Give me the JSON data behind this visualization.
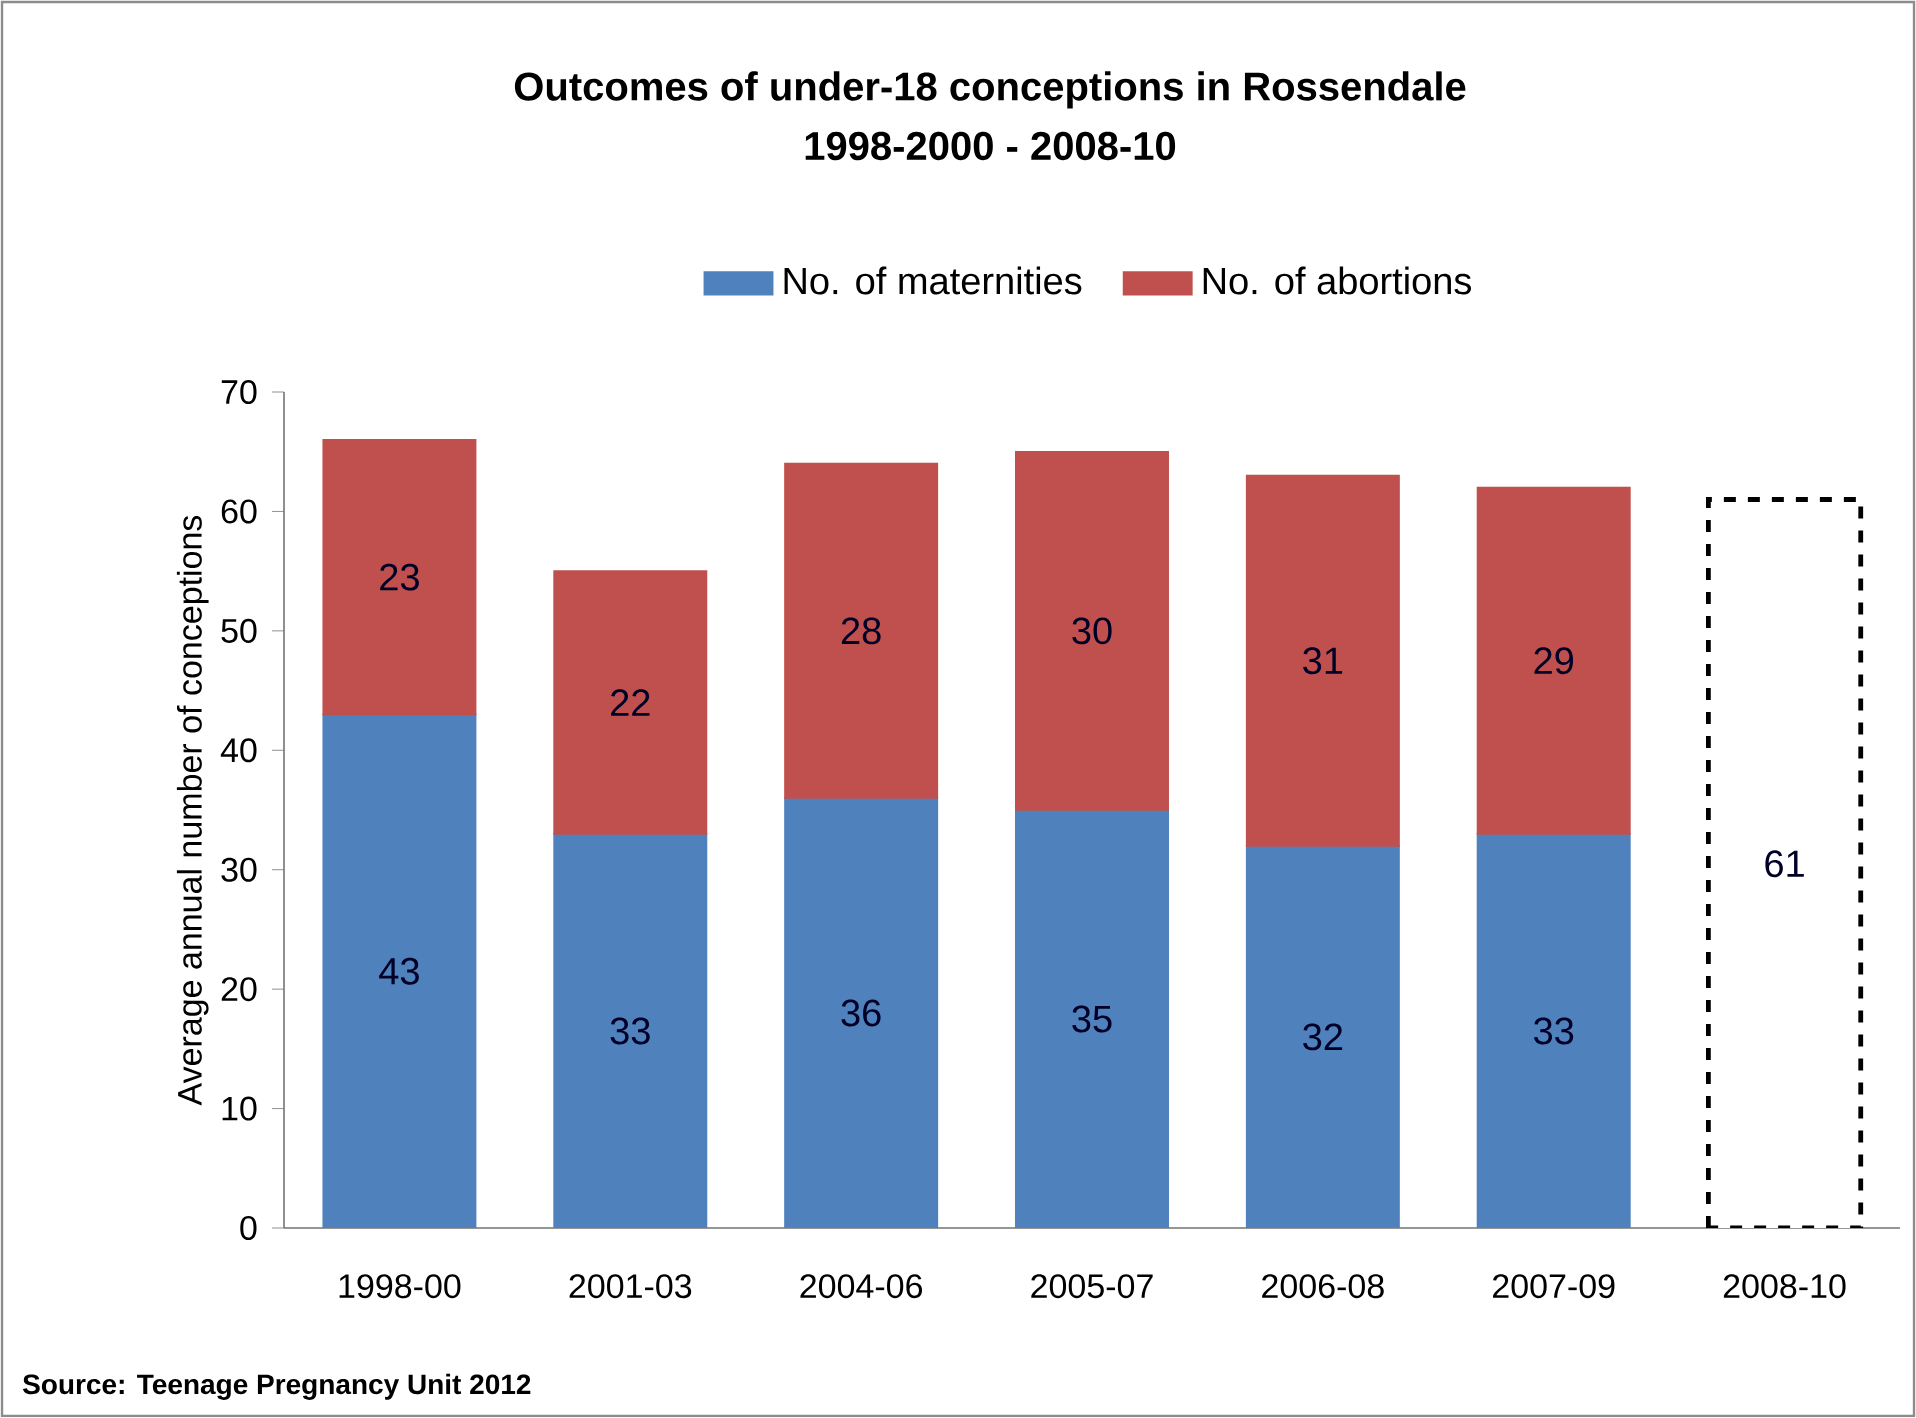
{
  "chart_data": {
    "type": "bar",
    "stacked": true,
    "title": "Outcomes of under-18 conceptions in Rossendale",
    "subtitle": "1998-2000 - 2008-10",
    "ylabel": "Average annual number of conceptions",
    "categories": [
      "1998-00",
      "2001-03",
      "2004-06",
      "2005-07",
      "2006-08",
      "2007-09",
      "2008-10"
    ],
    "series": [
      {
        "name": "No. of maternities",
        "color": "#4f81bd",
        "values": [
          43,
          33,
          36,
          35,
          32,
          33,
          null
        ]
      },
      {
        "name": "No. of abortions",
        "color": "#c0504d",
        "values": [
          23,
          22,
          28,
          30,
          31,
          29,
          null
        ]
      },
      {
        "color": "#000000",
        "line_style": "dashed",
        "values": [
          null,
          null,
          null,
          null,
          null,
          null,
          61
        ]
      }
    ],
    "ylim": [
      0,
      70
    ],
    "yticks": [
      0,
      10,
      20,
      30,
      40,
      50,
      60,
      70
    ],
    "data_labels": true,
    "legend": "top",
    "annotations": [
      "Source: Teenage Pregnancy Unit 2012"
    ]
  }
}
